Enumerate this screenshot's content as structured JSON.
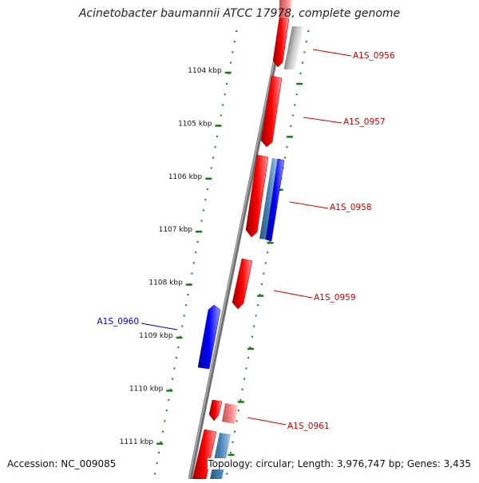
{
  "title": "Acinetobacter baumannii ATCC 17978, complete genome",
  "footer": {
    "accession": "Accession: NC_009085",
    "summary": "Topology: circular; Length: 3,976,747 bp; Genes: 3,435"
  },
  "scale_ticks": [
    {
      "label": "1104 kbp",
      "kbp": 1104
    },
    {
      "label": "1105 kbp",
      "kbp": 1105
    },
    {
      "label": "1106 kbp",
      "kbp": 1106
    },
    {
      "label": "1107 kbp",
      "kbp": 1107
    },
    {
      "label": "1108 kbp",
      "kbp": 1108
    },
    {
      "label": "1109 kbp",
      "kbp": 1109
    },
    {
      "label": "1110 kbp",
      "kbp": 1110
    },
    {
      "label": "1111 kbp",
      "kbp": 1111
    }
  ],
  "genes": [
    {
      "label": "A1S_0956",
      "color": "#cc0000"
    },
    {
      "label": "A1S_0957",
      "color": "#cc0000"
    },
    {
      "label": "A1S_0958",
      "color": "#cc0000"
    },
    {
      "label": "A1S_0959",
      "color": "#cc0000"
    },
    {
      "label": "A1S_0960",
      "color": "#0000cc"
    },
    {
      "label": "A1S_0961",
      "color": "#cc0000"
    }
  ],
  "colors": {
    "forward_cds": "#ff0000",
    "reverse_cds": "#0000ff",
    "light_red": "#f08080",
    "gray_feature": "#b8b8b8",
    "steel_blue": "#4682b4",
    "backbone": "#808080",
    "tick_green": "#1a7a1a"
  }
}
